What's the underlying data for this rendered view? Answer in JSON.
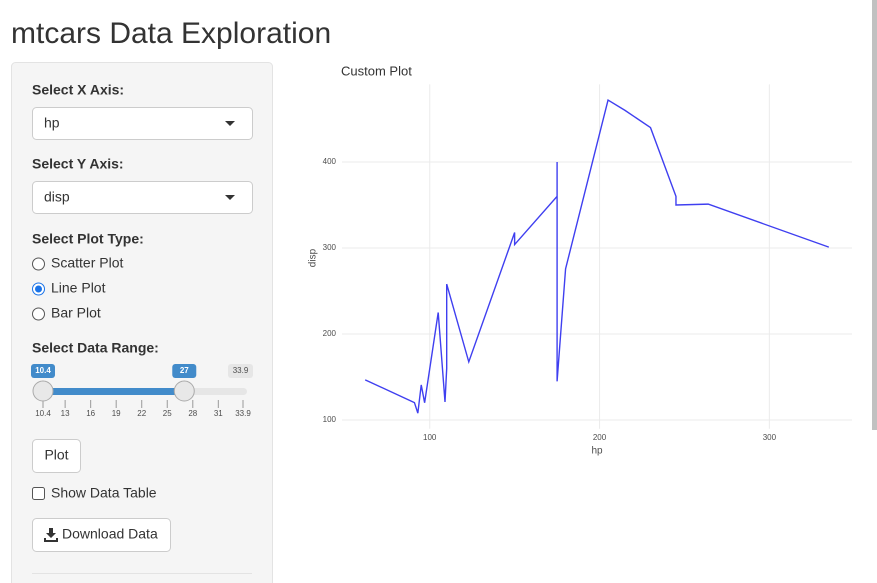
{
  "header": {
    "title": "mtcars Data Exploration"
  },
  "sidebar": {
    "x_axis": {
      "label": "Select X Axis:",
      "value": "hp"
    },
    "y_axis": {
      "label": "Select Y Axis:",
      "value": "disp"
    },
    "plot_type": {
      "label": "Select Plot Type:",
      "options": [
        "Scatter Plot",
        "Line Plot",
        "Bar Plot"
      ],
      "selected": 1
    },
    "data_range": {
      "label": "Select Data Range:",
      "min": 10.4,
      "max": 33.9,
      "from": 10.4,
      "to": 27,
      "ticks": [
        10.4,
        13,
        16,
        19,
        22,
        25,
        28,
        31,
        33.9
      ]
    },
    "plot_button": "Plot",
    "show_table": {
      "label": "Show Data Table",
      "checked": false
    },
    "download_button": "Download Data"
  },
  "chart_data": {
    "type": "line",
    "title": "Custom Plot",
    "x_label": "hp",
    "y_label": "disp",
    "x": [
      62,
      91,
      93,
      95,
      97,
      105,
      109,
      110,
      110,
      110,
      123,
      123,
      150,
      150,
      175,
      175,
      175,
      180,
      180,
      180,
      205,
      215,
      230,
      245,
      245,
      264,
      335
    ],
    "values": [
      146.7,
      120.3,
      108,
      140.8,
      120.1,
      225,
      121,
      160,
      160,
      258,
      167.6,
      167.6,
      318,
      304,
      360,
      400,
      145,
      275.8,
      275.8,
      275.8,
      472,
      460,
      440,
      360,
      350,
      351,
      301
    ],
    "color": "#3f3ff0",
    "xlim": [
      48.35,
      348.65
    ],
    "ylim": [
      89.8,
      490.2
    ],
    "xticks": [
      100,
      200,
      300
    ],
    "yticks": [
      100,
      200,
      300,
      400
    ],
    "grid": true
  }
}
